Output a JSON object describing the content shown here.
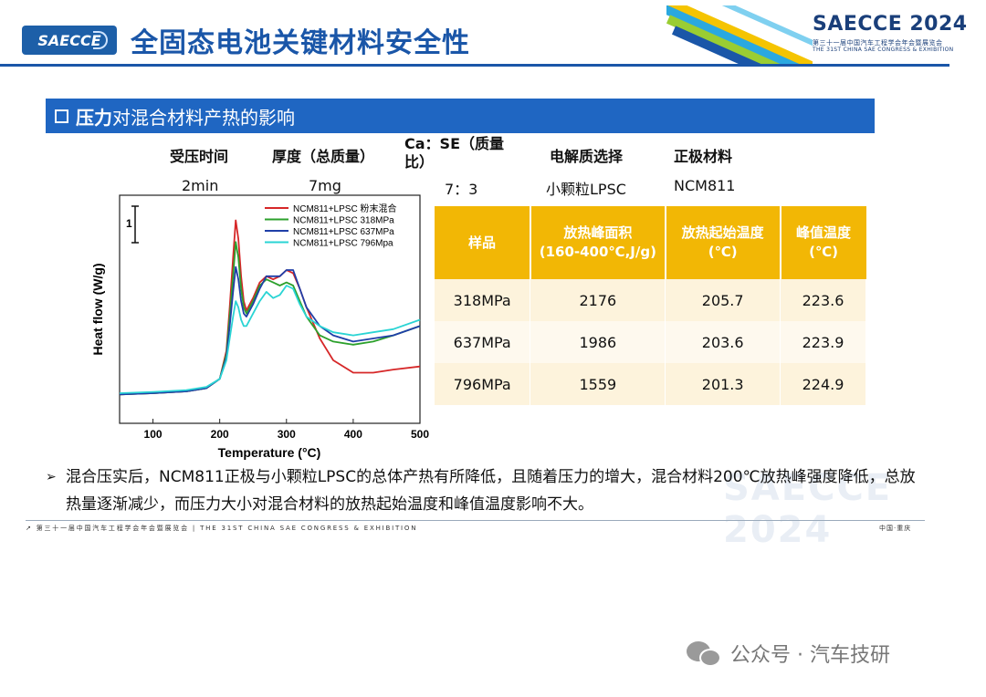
{
  "header": {
    "logo_text": "SAECCE",
    "title": "全固态电池关键材料安全性",
    "brand_title": "SAECCE 2024",
    "brand_sub_cn": "第三十一届中国汽车工程学会年会暨展览会",
    "brand_sub_en": "THE 31ST CHINA SAE CONGRESS & EXHIBITION",
    "stripe_colors": [
      "#f5c400",
      "#2aa8e0",
      "#9acd32",
      "#1a56a8",
      "#ffffff"
    ]
  },
  "section": {
    "bold": "压力",
    "rest": "对混合材料产热的影响"
  },
  "params": {
    "headers": [
      "受压时间",
      "厚度（总质量）",
      "Ca：SE（质量比）",
      "电解质选择",
      "正极材料"
    ],
    "values": [
      "2min",
      "7mg",
      "7：3",
      "小颗粒LPSC",
      "NCM811"
    ]
  },
  "chart_data": {
    "type": "line",
    "xlabel": "Temperature (°C)",
    "ylabel": "Heat flow (W/g)",
    "xlim": [
      50,
      500
    ],
    "xticks": [
      "100",
      "200",
      "300",
      "400",
      "500"
    ],
    "scale_bar_label": "1",
    "legend_position": "top-right",
    "series": [
      {
        "name": "NCM811+LPSC 粉末混合",
        "color": "#d62728",
        "x": [
          50,
          100,
          150,
          180,
          200,
          210,
          215,
          220,
          224,
          228,
          232,
          236,
          240,
          250,
          260,
          270,
          280,
          290,
          300,
          310,
          320,
          330,
          350,
          370,
          400,
          430,
          460,
          500
        ],
        "y": [
          0.2,
          0.22,
          0.25,
          0.3,
          0.45,
          0.9,
          1.6,
          2.4,
          3.0,
          2.7,
          2.1,
          1.7,
          1.55,
          1.75,
          2.0,
          2.1,
          2.05,
          2.1,
          2.2,
          2.15,
          1.9,
          1.6,
          1.1,
          0.75,
          0.55,
          0.55,
          0.6,
          0.65
        ]
      },
      {
        "name": "NCM811+LPSC 318MPa",
        "color": "#2ca02c",
        "x": [
          50,
          100,
          150,
          180,
          200,
          210,
          215,
          220,
          224,
          228,
          232,
          236,
          240,
          250,
          260,
          270,
          280,
          290,
          300,
          310,
          320,
          330,
          350,
          370,
          400,
          430,
          460,
          500
        ],
        "y": [
          0.2,
          0.22,
          0.25,
          0.3,
          0.45,
          0.85,
          1.45,
          2.1,
          2.65,
          2.4,
          1.9,
          1.6,
          1.5,
          1.7,
          1.95,
          2.05,
          2.0,
          1.95,
          2.0,
          1.95,
          1.7,
          1.45,
          1.15,
          1.05,
          1.0,
          1.05,
          1.15,
          1.3
        ]
      },
      {
        "name": "NCM811+LPSC 637MPa",
        "color": "#1f3fa8",
        "x": [
          50,
          100,
          150,
          180,
          200,
          210,
          215,
          220,
          224,
          228,
          232,
          236,
          240,
          250,
          260,
          270,
          280,
          290,
          300,
          310,
          320,
          330,
          350,
          370,
          400,
          430,
          460,
          500
        ],
        "y": [
          0.2,
          0.22,
          0.25,
          0.3,
          0.45,
          0.8,
          1.3,
          1.85,
          2.25,
          2.05,
          1.7,
          1.5,
          1.45,
          1.65,
          1.9,
          2.1,
          2.1,
          2.1,
          2.2,
          2.2,
          1.9,
          1.6,
          1.3,
          1.15,
          1.05,
          1.1,
          1.15,
          1.3
        ]
      },
      {
        "name": "NCM811+LPSC 796Mpa",
        "color": "#2ad4d4",
        "x": [
          50,
          100,
          150,
          180,
          200,
          210,
          215,
          220,
          224,
          228,
          232,
          236,
          240,
          250,
          260,
          270,
          280,
          290,
          300,
          310,
          320,
          330,
          350,
          370,
          400,
          430,
          460,
          500
        ],
        "y": [
          0.22,
          0.24,
          0.27,
          0.32,
          0.45,
          0.75,
          1.1,
          1.45,
          1.7,
          1.6,
          1.4,
          1.3,
          1.3,
          1.5,
          1.7,
          1.85,
          1.75,
          1.8,
          1.95,
          1.9,
          1.65,
          1.45,
          1.3,
          1.2,
          1.15,
          1.2,
          1.25,
          1.4
        ]
      }
    ]
  },
  "table": {
    "header_color": "#f2b705",
    "headers": [
      [
        "样品"
      ],
      [
        "放热峰面积",
        "(160-400℃,J/g)"
      ],
      [
        "放热起始温度",
        "(℃)"
      ],
      [
        "峰值温度",
        "(℃)"
      ]
    ],
    "rows": [
      [
        "318MPa",
        "2176",
        "205.7",
        "223.6"
      ],
      [
        "637MPa",
        "1986",
        "203.6",
        "223.9"
      ],
      [
        "796MPa",
        "1559",
        "201.3",
        "224.9"
      ]
    ]
  },
  "conclusion": {
    "bullet": "➢",
    "text": "混合压实后，NCM811正极与小颗粒LPSC的总体产热有所降低，且随着压力的增大，混合材料200℃放热峰强度降低，总放热量逐渐减少，而压力大小对混合材料的放热起始温度和峰值温度影响不大。"
  },
  "watermark": "SAECCE 2024",
  "footer": {
    "left": "↗ 第三十一届中国汽车工程学会年会暨展览会 | THE 31ST CHINA SAE CONGRESS & EXHIBITION",
    "right": "中国·重庆"
  },
  "wechat": {
    "label": "公众号 · 汽车技研"
  }
}
